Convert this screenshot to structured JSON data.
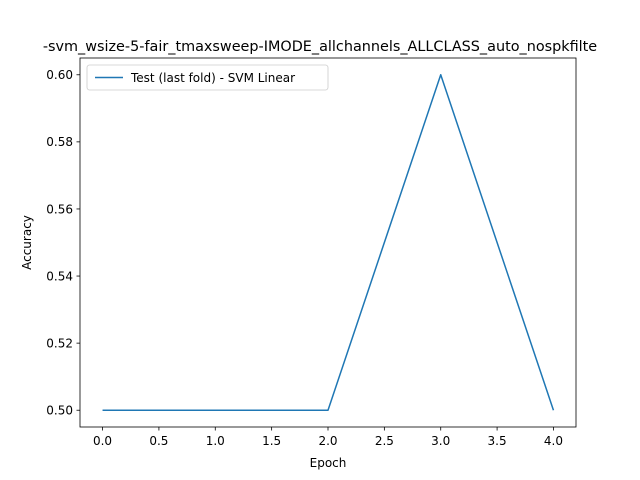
{
  "chart_data": {
    "type": "line",
    "title": "-svm_wsize-5-fair_tmaxsweep-IMODE_allchannels_ALLCLASS_auto_nospkfilte",
    "xlabel": "Epoch",
    "ylabel": "Accuracy",
    "xlim": [
      -0.2,
      4.2
    ],
    "ylim": [
      0.495,
      0.605
    ],
    "xticks": [
      0.0,
      0.5,
      1.0,
      1.5,
      2.0,
      2.5,
      3.0,
      3.5,
      4.0
    ],
    "xtick_labels": [
      "0.0",
      "0.5",
      "1.0",
      "1.5",
      "2.0",
      "2.5",
      "3.0",
      "3.5",
      "4.0"
    ],
    "yticks": [
      0.5,
      0.52,
      0.54,
      0.56,
      0.58,
      0.6
    ],
    "ytick_labels": [
      "0.50",
      "0.52",
      "0.54",
      "0.56",
      "0.58",
      "0.60"
    ],
    "grid": false,
    "legend_position": "top-left",
    "series": [
      {
        "name": "Test (last fold) - SVM Linear",
        "color": "#1f77b4",
        "x": [
          0,
          1,
          2,
          3,
          4
        ],
        "y": [
          0.5,
          0.5,
          0.5,
          0.6,
          0.5
        ]
      }
    ]
  }
}
